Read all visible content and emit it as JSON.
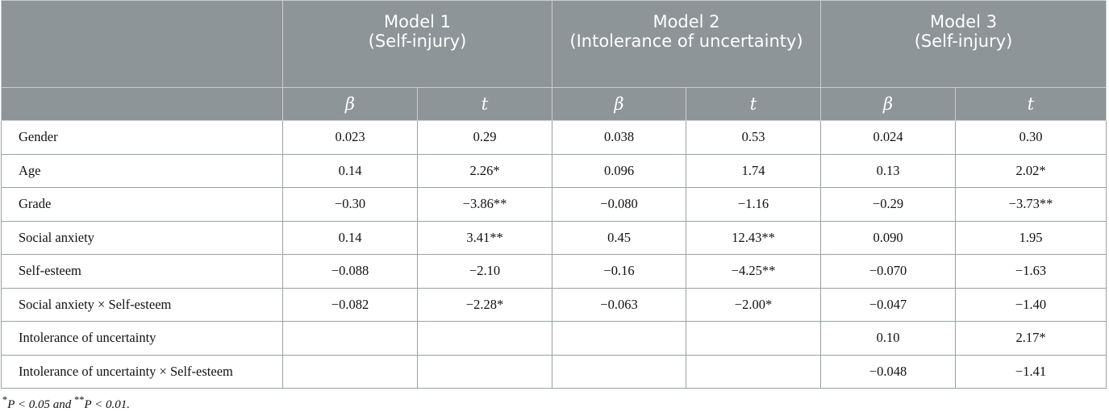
{
  "header": {
    "models": [
      {
        "line1": "Model 1",
        "line2": "(Self-injury)"
      },
      {
        "line1": "Model 2",
        "line2": "(Intolerance of uncertainty)"
      },
      {
        "line1": "Model 3",
        "line2": "(Self-injury)"
      }
    ],
    "stat_beta": "β",
    "stat_t": "t"
  },
  "rows": [
    {
      "label": "Gender",
      "values": [
        "0.023",
        "0.29",
        "0.038",
        "0.53",
        "0.024",
        "0.30"
      ]
    },
    {
      "label": "Age",
      "values": [
        "0.14",
        "2.26*",
        "0.096",
        "1.74",
        "0.13",
        "2.02*"
      ]
    },
    {
      "label": "Grade",
      "values": [
        "−0.30",
        "−3.86**",
        "−0.080",
        "−1.16",
        "−0.29",
        "−3.73**"
      ]
    },
    {
      "label": "Social anxiety",
      "values": [
        "0.14",
        "3.41**",
        "0.45",
        "12.43**",
        "0.090",
        "1.95"
      ]
    },
    {
      "label": "Self-esteem",
      "values": [
        "−0.088",
        "−2.10",
        "−0.16",
        "−4.25**",
        "−0.070",
        "−1.63"
      ]
    },
    {
      "label": "Social anxiety × Self-esteem",
      "values": [
        "−0.082",
        "−2.28*",
        "−0.063",
        "−2.00*",
        "−0.047",
        "−1.40"
      ]
    },
    {
      "label": "Intolerance of uncertainty",
      "values": [
        "",
        "",
        "",
        "",
        "0.10",
        "2.17*"
      ]
    },
    {
      "label": "Intolerance of uncertainty × Self-esteem",
      "values": [
        "",
        "",
        "",
        "",
        "−0.048",
        "−1.41"
      ]
    }
  ],
  "footnote": {
    "p1_sym": "*",
    "p1_text": "P < 0.05 and ",
    "p2_sym": "**",
    "p2_text": "P < 0.01."
  }
}
